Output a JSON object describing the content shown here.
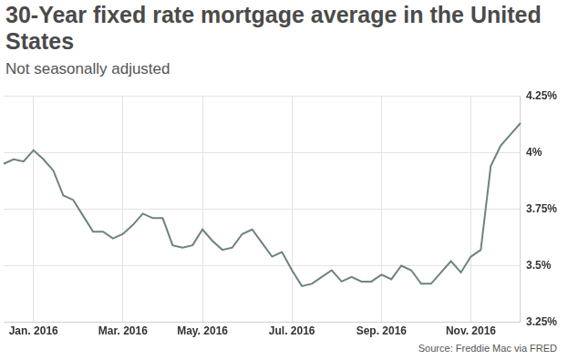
{
  "chart_data": {
    "type": "line",
    "title": "30-Year fixed rate mortgage average in the United States",
    "subtitle": "Not seasonally adjusted",
    "source": "Source: Freddie Mac via FRED",
    "categories": [
      null,
      null,
      null,
      "Jan. 2016",
      null,
      null,
      null,
      null,
      null,
      null,
      null,
      null,
      "Mar. 2016",
      null,
      null,
      null,
      null,
      null,
      null,
      null,
      "May. 2016",
      null,
      null,
      null,
      null,
      null,
      null,
      null,
      null,
      "Jul. 2016",
      null,
      null,
      null,
      null,
      null,
      null,
      null,
      null,
      "Sep. 2016",
      null,
      null,
      null,
      null,
      null,
      null,
      null,
      null,
      "Nov. 2016",
      null,
      null,
      null,
      null,
      null
    ],
    "values": [
      3.95,
      3.97,
      3.96,
      4.01,
      3.97,
      3.92,
      3.81,
      3.79,
      3.72,
      3.65,
      3.65,
      3.62,
      3.64,
      3.68,
      3.73,
      3.71,
      3.71,
      3.59,
      3.58,
      3.59,
      3.66,
      3.61,
      3.57,
      3.58,
      3.64,
      3.66,
      3.6,
      3.54,
      3.56,
      3.48,
      3.41,
      3.42,
      3.45,
      3.48,
      3.43,
      3.45,
      3.43,
      3.43,
      3.46,
      3.44,
      3.5,
      3.48,
      3.42,
      3.42,
      3.47,
      3.52,
      3.47,
      3.54,
      3.57,
      3.94,
      4.03,
      4.08,
      4.13
    ],
    "color": "#6d8282",
    "ylim": [
      3.25,
      4.25
    ],
    "yticks": [
      {
        "value": 3.25,
        "label": "3.25%"
      },
      {
        "value": 3.5,
        "label": "3.5%"
      },
      {
        "value": 3.75,
        "label": "3.75%"
      },
      {
        "value": 4,
        "label": "4%"
      },
      {
        "value": 4.25,
        "label": "4.25%"
      }
    ],
    "grid": true
  }
}
